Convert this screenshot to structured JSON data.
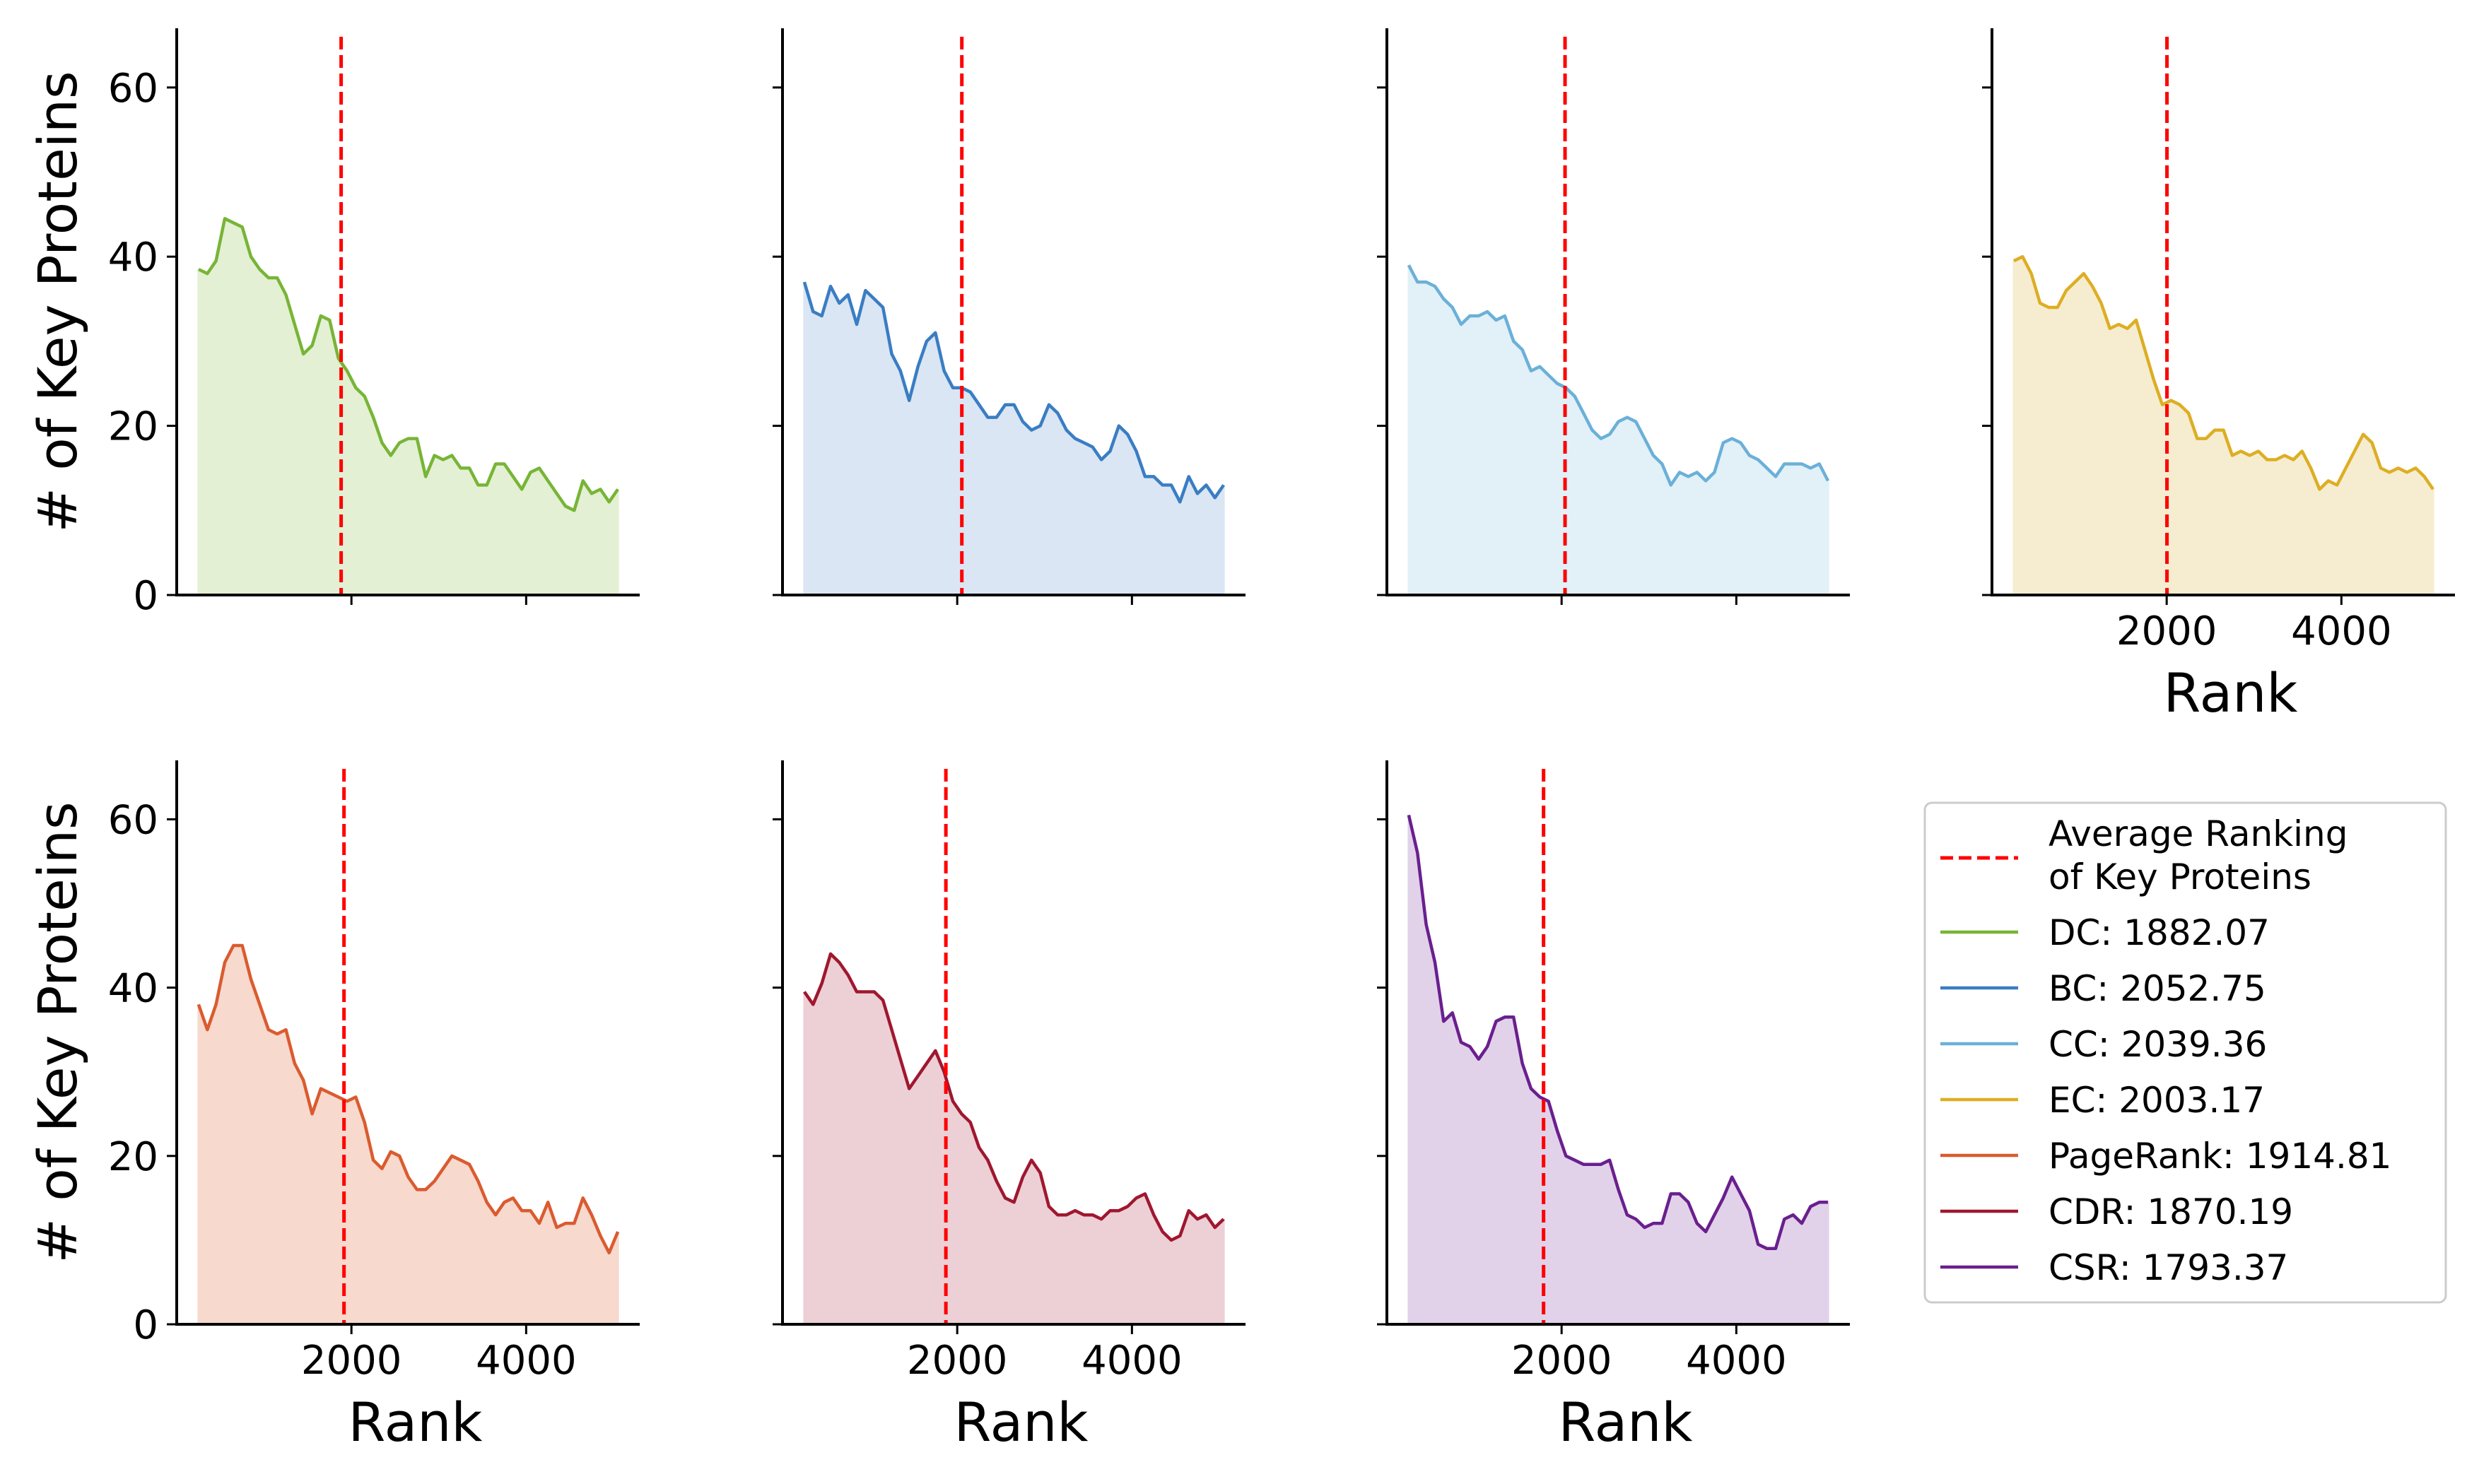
{
  "chart_data": {
    "type": "area",
    "shared": {
      "xlabel": "Rank",
      "ylabel": "# of Key Proteins",
      "xlim": [
        0,
        5300
      ],
      "ylim": [
        0,
        67
      ],
      "xticks": [
        2000,
        4000
      ],
      "yticks": [
        0,
        20,
        40,
        60
      ],
      "reference_line_color": "#ff0000",
      "reference_line_style": "dashed",
      "grid": false
    },
    "x": [
      250,
      350,
      450,
      550,
      650,
      750,
      850,
      950,
      1050,
      1150,
      1250,
      1350,
      1450,
      1550,
      1650,
      1750,
      1850,
      1950,
      2050,
      2150,
      2250,
      2350,
      2450,
      2550,
      2650,
      2750,
      2850,
      2950,
      3050,
      3150,
      3250,
      3350,
      3450,
      3550,
      3650,
      3750,
      3850,
      3950,
      4050,
      4150,
      4250,
      4350,
      4450,
      4550,
      4650,
      4750,
      4850,
      4950,
      5050
    ],
    "panels": [
      {
        "series": "DC",
        "average_rank": 1882.07,
        "color": "#77b536",
        "fill": "#e3f0d3",
        "values": [
          38.5,
          38,
          39.5,
          44.5,
          44,
          43.5,
          40,
          38.5,
          37.5,
          37.5,
          35.5,
          32,
          28.5,
          29.5,
          33,
          32.5,
          28,
          26.5,
          24.5,
          23.5,
          21,
          18,
          16.5,
          18,
          18.5,
          18.5,
          14,
          16.5,
          16,
          16.5,
          15,
          15,
          13,
          13,
          15.5,
          15.5,
          14,
          12.5,
          14.5,
          15,
          13.5,
          12,
          10.5,
          10,
          13.5,
          12,
          12.5,
          11,
          12.5
        ]
      },
      {
        "series": "BC",
        "average_rank": 2052.75,
        "color": "#3a7dc3",
        "fill": "#dae6f3",
        "values": [
          37,
          33.5,
          33,
          36.5,
          34.5,
          35.5,
          32,
          36,
          35,
          34,
          28.5,
          26.5,
          23,
          27,
          30,
          31,
          26.5,
          24.5,
          24.5,
          24,
          22.5,
          21,
          21,
          22.5,
          22.5,
          20.5,
          19.5,
          20,
          22.5,
          21.5,
          19.5,
          18.5,
          18,
          17.5,
          16,
          17,
          20,
          19,
          17,
          14,
          14,
          13,
          13,
          11,
          14,
          12,
          13,
          11.5,
          13
        ]
      },
      {
        "series": "CC",
        "average_rank": 2039.36,
        "color": "#6bb0d8",
        "fill": "#e2f0f8",
        "values": [
          39,
          37,
          37,
          36.5,
          35,
          34,
          32,
          33,
          33,
          33.5,
          32.5,
          33,
          30,
          29,
          26.5,
          27,
          26,
          25,
          24.5,
          23.5,
          21.5,
          19.5,
          18.5,
          19,
          20.5,
          21,
          20.5,
          18.5,
          16.5,
          15.5,
          13,
          14.5,
          14,
          14.5,
          13.5,
          14.5,
          18,
          18.5,
          18,
          16.5,
          16,
          15,
          14,
          15.5,
          15.5,
          15.5,
          15,
          15.5,
          13.5
        ]
      },
      {
        "series": "EC",
        "average_rank": 2003.17,
        "color": "#ddae24",
        "fill": "#f6edd0",
        "values": [
          39.5,
          40,
          38,
          34.5,
          34,
          34,
          36,
          37,
          38,
          36.5,
          34.5,
          31.5,
          32,
          31.5,
          32.5,
          29,
          25.5,
          22.5,
          23,
          22.5,
          21.5,
          18.5,
          18.5,
          19.5,
          19.5,
          16.5,
          17,
          16.5,
          17,
          16,
          16,
          16.5,
          16,
          17,
          15,
          12.5,
          13.5,
          13,
          15,
          17,
          19,
          18,
          15,
          14.5,
          15,
          14.5,
          15,
          14,
          12.5
        ]
      },
      {
        "series": "PageRank",
        "average_rank": 1914.81,
        "color": "#da5b2f",
        "fill": "#f7d9cd",
        "values": [
          38,
          35,
          38,
          43,
          45,
          45,
          41,
          38,
          35,
          34.5,
          35,
          31,
          29,
          25,
          28,
          27.5,
          27,
          26.5,
          27,
          24,
          19.5,
          18.5,
          20.5,
          20,
          17.5,
          16,
          16,
          17,
          18.5,
          20,
          19.5,
          19,
          17,
          14.5,
          13,
          14.5,
          15,
          13.5,
          13.5,
          12,
          14.5,
          11.5,
          12,
          12,
          15,
          13,
          10.5,
          8.5,
          11
        ]
      },
      {
        "series": "CDR",
        "average_rank": 1870.19,
        "color": "#a0172f",
        "fill": "#ecd0d6",
        "values": [
          39.5,
          38,
          40.5,
          44,
          43,
          41.5,
          39.5,
          39.5,
          39.5,
          38.5,
          35,
          31.5,
          28,
          29.5,
          31,
          32.5,
          30,
          26.5,
          25,
          24,
          21,
          19.5,
          17,
          15,
          14.5,
          17.5,
          19.5,
          18,
          14,
          13,
          13,
          13.5,
          13,
          13,
          12.5,
          13.5,
          13.5,
          14,
          15,
          15.5,
          13,
          11,
          10,
          10.5,
          13.5,
          12.5,
          13,
          11.5,
          12.5
        ]
      },
      {
        "series": "CSR",
        "average_rank": 1793.37,
        "color": "#6a1f8e",
        "fill": "#e1d2ea",
        "values": [
          60.5,
          56,
          47.5,
          43,
          36,
          37,
          33.5,
          33,
          31.5,
          33,
          36,
          36.5,
          36.5,
          31,
          28,
          27,
          26.5,
          23,
          20,
          19.5,
          19,
          19,
          19,
          19.5,
          16,
          13,
          12.5,
          11.5,
          12,
          12,
          15.5,
          15.5,
          14.5,
          12,
          11,
          13,
          15,
          17.5,
          15.5,
          13.5,
          9.5,
          9,
          9,
          12.5,
          13,
          12,
          14,
          14.5,
          14.5
        ]
      }
    ],
    "legend": {
      "placement": "lower-right",
      "reference_label": "Average Ranking\nof Key Proteins",
      "entries": [
        "DC: 1882.07",
        "BC: 2052.75",
        "CC: 2039.36",
        "EC: 2003.17",
        "PageRank: 1914.81",
        "CDR: 1870.19",
        "CSR: 1793.37"
      ]
    }
  }
}
